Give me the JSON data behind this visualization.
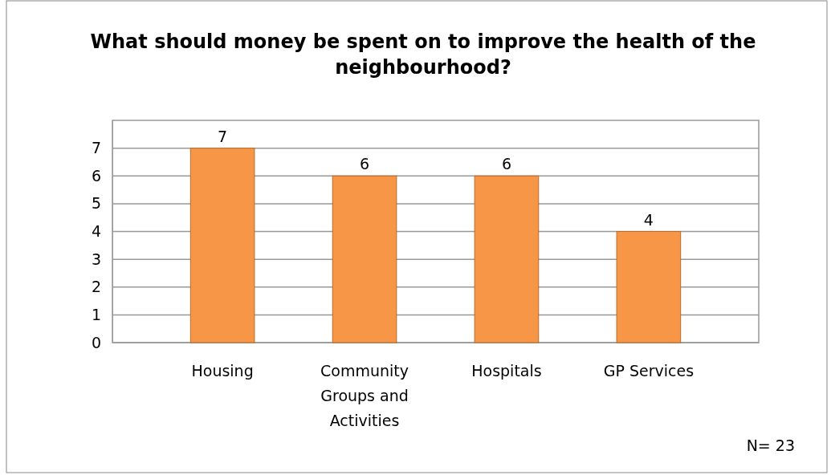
{
  "chart_data": {
    "type": "bar",
    "title": "What should money be spent on to improve the health of the neighbourhood?",
    "categories": [
      "Housing",
      "Community Groups and Activities",
      "Hospitals",
      "GP Services"
    ],
    "values": [
      7,
      6,
      6,
      4
    ],
    "color": "#f79646",
    "data_labels": true,
    "ylim": [
      0,
      8
    ],
    "yticks": [
      0,
      1,
      2,
      3,
      4,
      5,
      6,
      7
    ],
    "grid": "y",
    "annotations": [
      "N= 23"
    ]
  }
}
